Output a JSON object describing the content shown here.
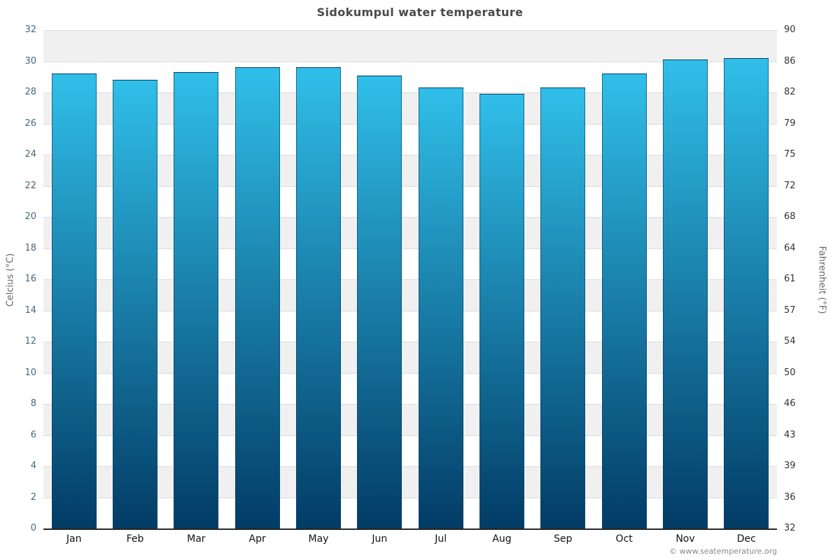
{
  "title": "Sidokumpul water temperature",
  "copyright": "© www.seatemperature.org",
  "chart_data": {
    "type": "bar",
    "title": "Sidokumpul water temperature",
    "categories": [
      "Jan",
      "Feb",
      "Mar",
      "Apr",
      "May",
      "Jun",
      "Jul",
      "Aug",
      "Sep",
      "Oct",
      "Nov",
      "Dec"
    ],
    "values": [
      29.2,
      28.8,
      29.3,
      29.6,
      29.6,
      29.1,
      28.3,
      27.9,
      28.3,
      29.2,
      30.1,
      30.2
    ],
    "series_name": "Water temperature (°C)",
    "xlabel": "",
    "ylabel_left": "Celcius (°C)",
    "ylabel_right": "Fahrenheit (°F)",
    "ylim_celsius": [
      0,
      32
    ],
    "yticks_celsius": [
      0,
      2,
      4,
      6,
      8,
      10,
      12,
      14,
      16,
      18,
      20,
      22,
      24,
      26,
      28,
      30,
      32
    ],
    "yticks_fahrenheit": [
      32,
      36,
      39,
      43,
      46,
      50,
      54,
      57,
      61,
      64,
      68,
      72,
      75,
      79,
      82,
      86,
      90
    ],
    "grid": true,
    "legend": "none",
    "band_color": "#f0f0f0",
    "gridline_color": "#dcdcdc",
    "bar_gradient_top": "#30bfe9",
    "bar_gradient_bottom": "#023c66",
    "axis_color": "#262626"
  }
}
